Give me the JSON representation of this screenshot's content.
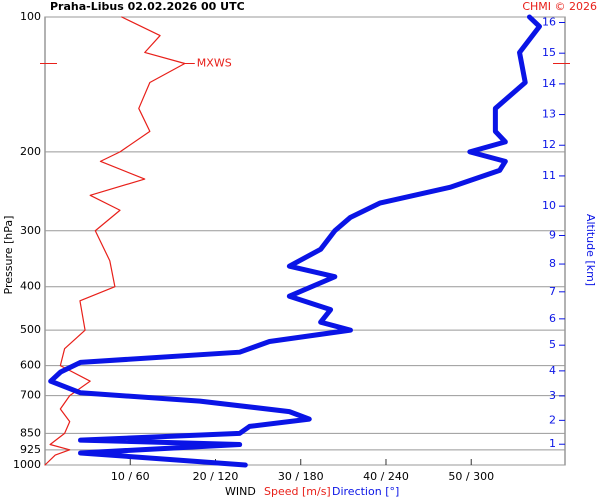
{
  "chart_data": {
    "type": "line",
    "title": "Praha-Libus   02.02.2026 00 UTC",
    "credit": "CHMI © 2026",
    "y_label": "Pressure [hPa]",
    "y2_label": "Altitude [km]",
    "x_label": "WIND",
    "x_label_speed": "Speed [m/s]",
    "x_label_direction": "Direction [°]",
    "log_scale": true,
    "grid": true,
    "ylim": [
      100,
      1000
    ],
    "yticks": [
      100,
      200,
      300,
      400,
      500,
      600,
      700,
      850,
      925,
      1000
    ],
    "y2ticks": [
      1,
      2,
      3,
      4,
      5,
      6,
      7,
      8,
      9,
      10,
      11,
      12,
      13,
      14,
      15,
      16
    ],
    "xlim": [
      0,
      61
    ],
    "xticks": [
      {
        "value": 10,
        "label": "10 / 60"
      },
      {
        "value": 20,
        "label": "20 / 120"
      },
      {
        "value": 30,
        "label": "30 / 180"
      },
      {
        "value": 40,
        "label": "40 / 240"
      },
      {
        "value": 50,
        "label": "50 / 300"
      }
    ],
    "annotations": [
      {
        "text": "MXWS",
        "pressure": 127
      }
    ],
    "series": [
      {
        "name": "Speed",
        "color": "#e8201a",
        "scale": 1,
        "pressure": [
          100,
          110,
          120,
          127,
          140,
          160,
          180,
          200,
          210,
          230,
          250,
          270,
          300,
          350,
          400,
          430,
          500,
          550,
          600,
          650,
          700,
          750,
          800,
          850,
          900,
          925,
          950,
          1000
        ],
        "values": [
          9,
          13.5,
          11.7,
          16.4,
          12.3,
          11,
          12.3,
          8.8,
          6.5,
          11.7,
          5.3,
          8.8,
          5.9,
          7.6,
          8.2,
          4.1,
          4.7,
          2.3,
          1.8,
          5.3,
          2.9,
          1.8,
          2.9,
          2.3,
          0.6,
          2.9,
          1.2,
          0
        ]
      },
      {
        "name": "Direction",
        "color": "#0a14e6",
        "scale": 6,
        "pressure": [
          100,
          105,
          120,
          140,
          160,
          180,
          190,
          200,
          210,
          220,
          240,
          260,
          280,
          300,
          330,
          360,
          380,
          420,
          450,
          480,
          500,
          530,
          560,
          590,
          620,
          650,
          690,
          720,
          760,
          790,
          820,
          850,
          880,
          900,
          940,
          1000
        ],
        "values": [
          341,
          348,
          334,
          338,
          317,
          317,
          324,
          299,
          324,
          320,
          285,
          236,
          215,
          204,
          194,
          172,
          204,
          172,
          201,
          194,
          215,
          158,
          137,
          25,
          11,
          4,
          25,
          109,
          172,
          186,
          144,
          137,
          25,
          137,
          25,
          141
        ]
      }
    ]
  }
}
